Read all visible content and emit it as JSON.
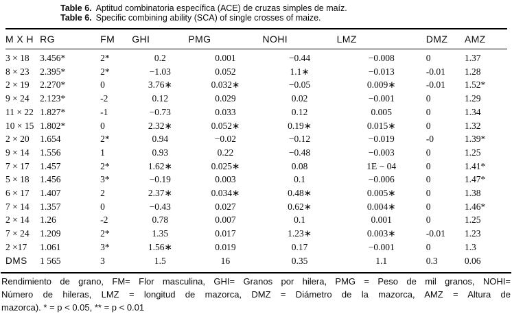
{
  "title": {
    "line1": {
      "label": "Table 6.",
      "text": "Aptitud combinatoria específica (ACE) de cruzas simples de maíz."
    },
    "line2": {
      "label": "Table 6.",
      "text": "Specific combining ability (SCA) of single crosses of maize."
    }
  },
  "table": {
    "columns": [
      "M X H",
      "RG",
      "FM",
      "GHI",
      "PMG",
      "NOHI",
      "LMZ",
      "DMZ",
      "AMZ"
    ],
    "rows": [
      [
        "3 × 18",
        "3.456*",
        "2*",
        "0.2",
        "0.001",
        "−0.44",
        "−0.008",
        "0",
        "1.37"
      ],
      [
        "8 × 23",
        "2.395*",
        "2*",
        "−1.03",
        "0.052",
        "1.1∗",
        "−0.013",
        "-0.01",
        "1.28"
      ],
      [
        "2 × 19",
        "2.270*",
        "0",
        "3.76∗",
        "0.032∗",
        "−0.05",
        "0.009∗",
        "-0.01",
        "1.52*"
      ],
      [
        "9 × 24",
        "2.123*",
        "-2",
        "0.12",
        "0.029",
        "0.02",
        "−0.001",
        "0",
        "1.29"
      ],
      [
        "11 × 22",
        "1.827*",
        "-1",
        "−0.73",
        "0.033",
        "0.12",
        "0.005",
        "0",
        "1.34"
      ],
      [
        "10 × 15",
        "1.802*",
        "0",
        "2.32∗",
        "0.052∗",
        "0.19∗",
        "0.015∗",
        "0",
        "1.32"
      ],
      [
        "2 × 20",
        "1.654",
        "2*",
        "0.94",
        "−0.02",
        "−0.12",
        "−0.019",
        "-0",
        "1.39*"
      ],
      [
        "9 × 14",
        "1.556",
        "1",
        "0.93",
        "0.22",
        "−0.48",
        "−0.003",
        "0",
        "1.25"
      ],
      [
        "7 × 17",
        "1.457",
        "2*",
        "1.62∗",
        "0.025∗",
        "0.08",
        "1E − 04",
        "0",
        "1.41*"
      ],
      [
        "5 × 18",
        "1.456",
        "3*",
        "−0.19",
        "0.003",
        "0.1",
        "−0.006",
        "0",
        "1.47*"
      ],
      [
        "6 × 17",
        "1.407",
        "2",
        "2.37∗",
        "0.034∗",
        "0.48∗",
        "0.005∗",
        "0",
        "1.38"
      ],
      [
        "7 × 14",
        "1.357",
        "0",
        "−0.43",
        "0.027",
        "0.62∗",
        "0.004∗",
        "0",
        "1.46*"
      ],
      [
        "2 × 14",
        "1.26",
        "-2",
        "0.78",
        "0.007",
        "0.1",
        "0.001",
        "0",
        "1.25"
      ],
      [
        "7 × 24",
        "1.209",
        "2*",
        "1.35",
        "0.017",
        "1.23∗",
        "0.003∗",
        "-0.01",
        "1.23"
      ],
      [
        "2 ×17",
        "1.061",
        "3*",
        "1.56∗",
        "0.019",
        "0.17",
        "−0.001",
        "0",
        "1.3"
      ],
      [
        "DMS",
        "1 565",
        "3",
        "1.5",
        "16",
        "0.35",
        "1.1",
        "0.3",
        "0.06"
      ]
    ]
  },
  "footnote": {
    "lines": [
      "Rendimiento de grano, FM= Flor masculina, GHI= Granos por hilera, PMG = Peso de mil granos, NOHI=",
      "Número de hileras, LMZ = longitud de mazorca, DMZ = Diámetro de la mazorca, AMZ = Altura de",
      "mazorca). * = p < 0.05, ** = p < 0.01"
    ]
  },
  "colors": {
    "text": "#000000",
    "background": "#ffffff",
    "rule": "#000000"
  }
}
